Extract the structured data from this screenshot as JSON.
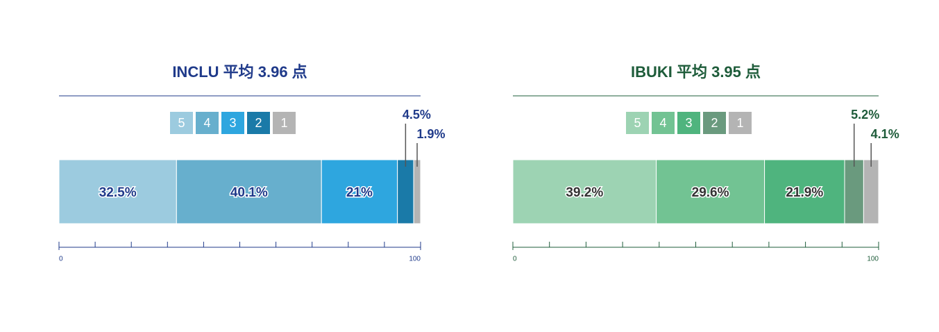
{
  "chart_data": [
    {
      "type": "stacked-bar",
      "title": "INCLU 平均 3.96 点",
      "title_color": "#1f3a8a",
      "series": [
        {
          "name": "5",
          "color": "#9ccbdf",
          "values": [
            32.5
          ],
          "value_labels": [
            "32.5%"
          ]
        },
        {
          "name": "4",
          "color": "#67afcd",
          "values": [
            40.1
          ],
          "value_labels": [
            "40.1%"
          ]
        },
        {
          "name": "3",
          "color": "#2ea6df",
          "values": [
            21
          ],
          "value_labels": [
            "21%"
          ]
        },
        {
          "name": "2",
          "color": "#1a7aa8",
          "values": [
            4.5
          ],
          "value_labels": [
            "4.5%"
          ]
        },
        {
          "name": "1",
          "color": "#b4b4b4",
          "values": [
            1.9
          ],
          "value_labels": [
            "1.9%"
          ]
        }
      ],
      "xlim": [
        0,
        100
      ],
      "xticks": [
        0,
        100
      ],
      "minor_xticks": [
        10,
        20,
        30,
        40,
        50,
        60,
        70,
        80,
        90
      ]
    },
    {
      "type": "stacked-bar",
      "title": "IBUKI 平均 3.95 点",
      "title_color": "#1e5c3a",
      "series": [
        {
          "name": "5",
          "color": "#9dd3b3",
          "values": [
            39.2
          ],
          "value_labels": [
            "39.2%"
          ]
        },
        {
          "name": "4",
          "color": "#72c393",
          "values": [
            29.6
          ],
          "value_labels": [
            "29.6%"
          ]
        },
        {
          "name": "3",
          "color": "#4fb47e",
          "values": [
            21.9
          ],
          "value_labels": [
            "21.9%"
          ]
        },
        {
          "name": "2",
          "color": "#6a9a7e",
          "values": [
            5.2
          ],
          "value_labels": [
            "5.2%"
          ]
        },
        {
          "name": "1",
          "color": "#b4b4b4",
          "values": [
            4.1
          ],
          "value_labels": [
            "4.1%"
          ]
        }
      ],
      "xlim": [
        0,
        100
      ],
      "xticks": [
        0,
        100
      ],
      "minor_xticks": [
        10,
        20,
        30,
        40,
        50,
        60,
        70,
        80,
        90
      ]
    }
  ]
}
